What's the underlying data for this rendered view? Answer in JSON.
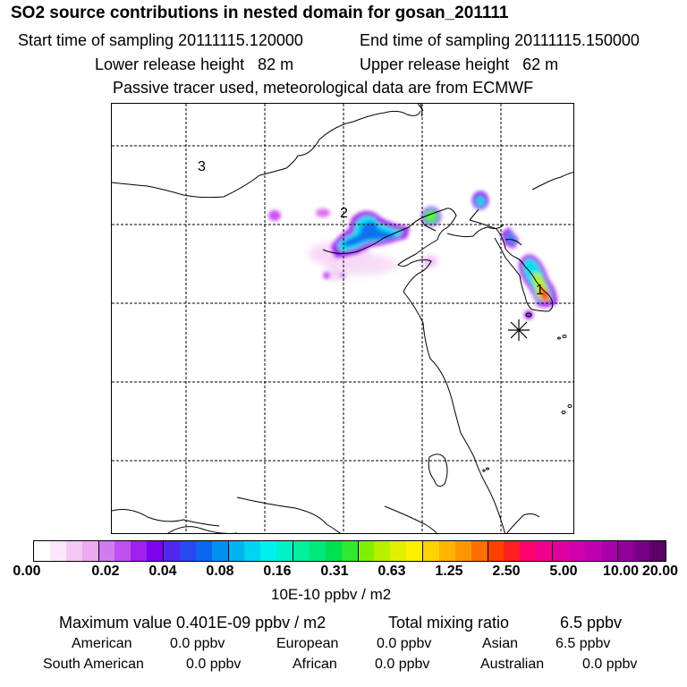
{
  "header": {
    "title": "SO2 source contributions in nested domain for gosan_201111",
    "start_label": "Start time of sampling 20111115.120000",
    "end_label": "End time of sampling 20111115.150000",
    "lower_label": "Lower release height   82 m",
    "upper_label": "Upper release height   62 m",
    "tracer_note": "Passive tracer used, meteorological data are from ECMWF"
  },
  "map": {
    "region_labels": [
      "1",
      "2",
      "3"
    ],
    "receptor_icon": "asterisk-icon"
  },
  "colorbar": {
    "colors": [
      "#ffffff",
      "#fce6fc",
      "#f5c8f5",
      "#ecaaf0",
      "#d07cf0",
      "#c050f0",
      "#a020f0",
      "#8000f0",
      "#5028f0",
      "#2848f0",
      "#0a68f0",
      "#0090f0",
      "#00b4f0",
      "#00d4f0",
      "#00f0f0",
      "#00f0c8",
      "#00f0a0",
      "#00e878",
      "#00e050",
      "#30e830",
      "#80f000",
      "#b8f000",
      "#e0f000",
      "#fff000",
      "#ffd200",
      "#ffb400",
      "#ff9600",
      "#ff6e00",
      "#ff4000",
      "#ff2020",
      "#ff0070",
      "#f00090",
      "#e000a0",
      "#d000b0",
      "#c000b0",
      "#a800a8",
      "#900098",
      "#780088",
      "#5a0066"
    ],
    "tick_labels": [
      "0.00",
      "0.02",
      "0.04",
      "0.08",
      "0.16",
      "0.31",
      "0.63",
      "1.25",
      "2.50",
      "5.00",
      "10.00",
      "20.00"
    ],
    "units": "10E-10 ppbv / m2"
  },
  "summary": {
    "max_line": "Maximum value  0.401E-09 ppbv / m2",
    "total_label": "Total mixing ratio",
    "total_value": "6.5 ppbv",
    "regions": [
      {
        "name": "American",
        "value": "0.0 ppbv"
      },
      {
        "name": "European",
        "value": "0.0 ppbv"
      },
      {
        "name": "Asian",
        "value": "6.5 ppbv"
      },
      {
        "name": "South American",
        "value": "0.0 ppbv"
      },
      {
        "name": "African",
        "value": "0.0 ppbv"
      },
      {
        "name": "Australian",
        "value": "0.0 ppbv"
      }
    ]
  }
}
